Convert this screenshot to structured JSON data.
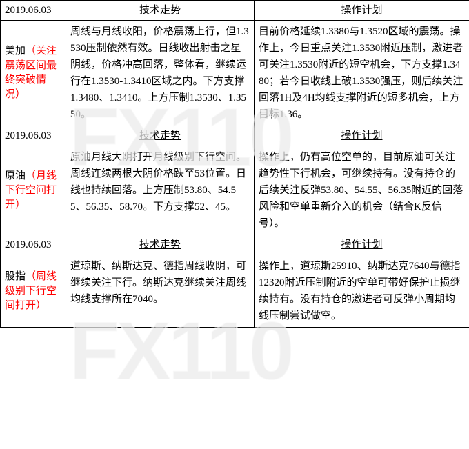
{
  "watermark_text": "FX110",
  "headers": {
    "trend": "技术走势",
    "plan": "操作计划"
  },
  "sections": [
    {
      "date": "2019.06.03",
      "label_black": "美加",
      "label_red": "（关注震荡区间最终突破情况）",
      "trend": "周线与月线收阳，价格震荡上行，但1.3530压制依然有效。日线收出射击之星阴线，价格冲高回落，整体看，继续运行在1.3530-1.3410区域之内。下方支撑1.3480、1.3410。上方压制1.3530、1.3550。",
      "plan": "目前价格延续1.3380与1.3520区域的震荡。操作上，今日重点关注1.3530附近压制，激进者可关注1.3530附近的短空机会，下方支撑1.3480；若今日收线上破1.3530强压，则后续关注回落1H及4H均线支撑附近的短多机会，上方目标1.36。"
    },
    {
      "date": "2019.06.03",
      "label_black": "原油",
      "label_red": "（月线下行空间打开）",
      "trend": "原油月线大阴打开月线级别下行空间。周线连续两根大阴价格跌至53位置。日线也持续回落。上方压制53.80、54.55、56.35、58.70。下方支撑52、45。",
      "plan": "操作上，仍有高位空单的，目前原油可关注趋势性下行机会，可继续持有。没有持仓的后续关注反弹53.80、54.55、56.35附近的回落风险和空单重新介入的机会（结合K反信号）。"
    },
    {
      "date": "2019.06.03",
      "label_black": "股指",
      "label_red": "（周线级别下行空间打开）",
      "trend": "道琼斯、纳斯达克、德指周线收阴，可继续关注下行。纳斯达克继续关注周线均线支撑所在7040。",
      "plan": "操作上，道琼斯25910、纳斯达克7640与德指12320附近压制附近的空单可带好保护止损继续持有。没有持仓的激进者可反弹小周期均线压制尝试做空。"
    }
  ],
  "styles": {
    "font_size": 15,
    "line_height": 1.6,
    "border_color": "#000000",
    "text_color": "#000000",
    "red_color": "#ff0000",
    "watermark_color": "rgba(200,200,200,0.28)",
    "watermark_fontsize": 120,
    "col_widths": {
      "label": 95,
      "trend": 273,
      "plan": 312
    },
    "container_width": 680
  }
}
